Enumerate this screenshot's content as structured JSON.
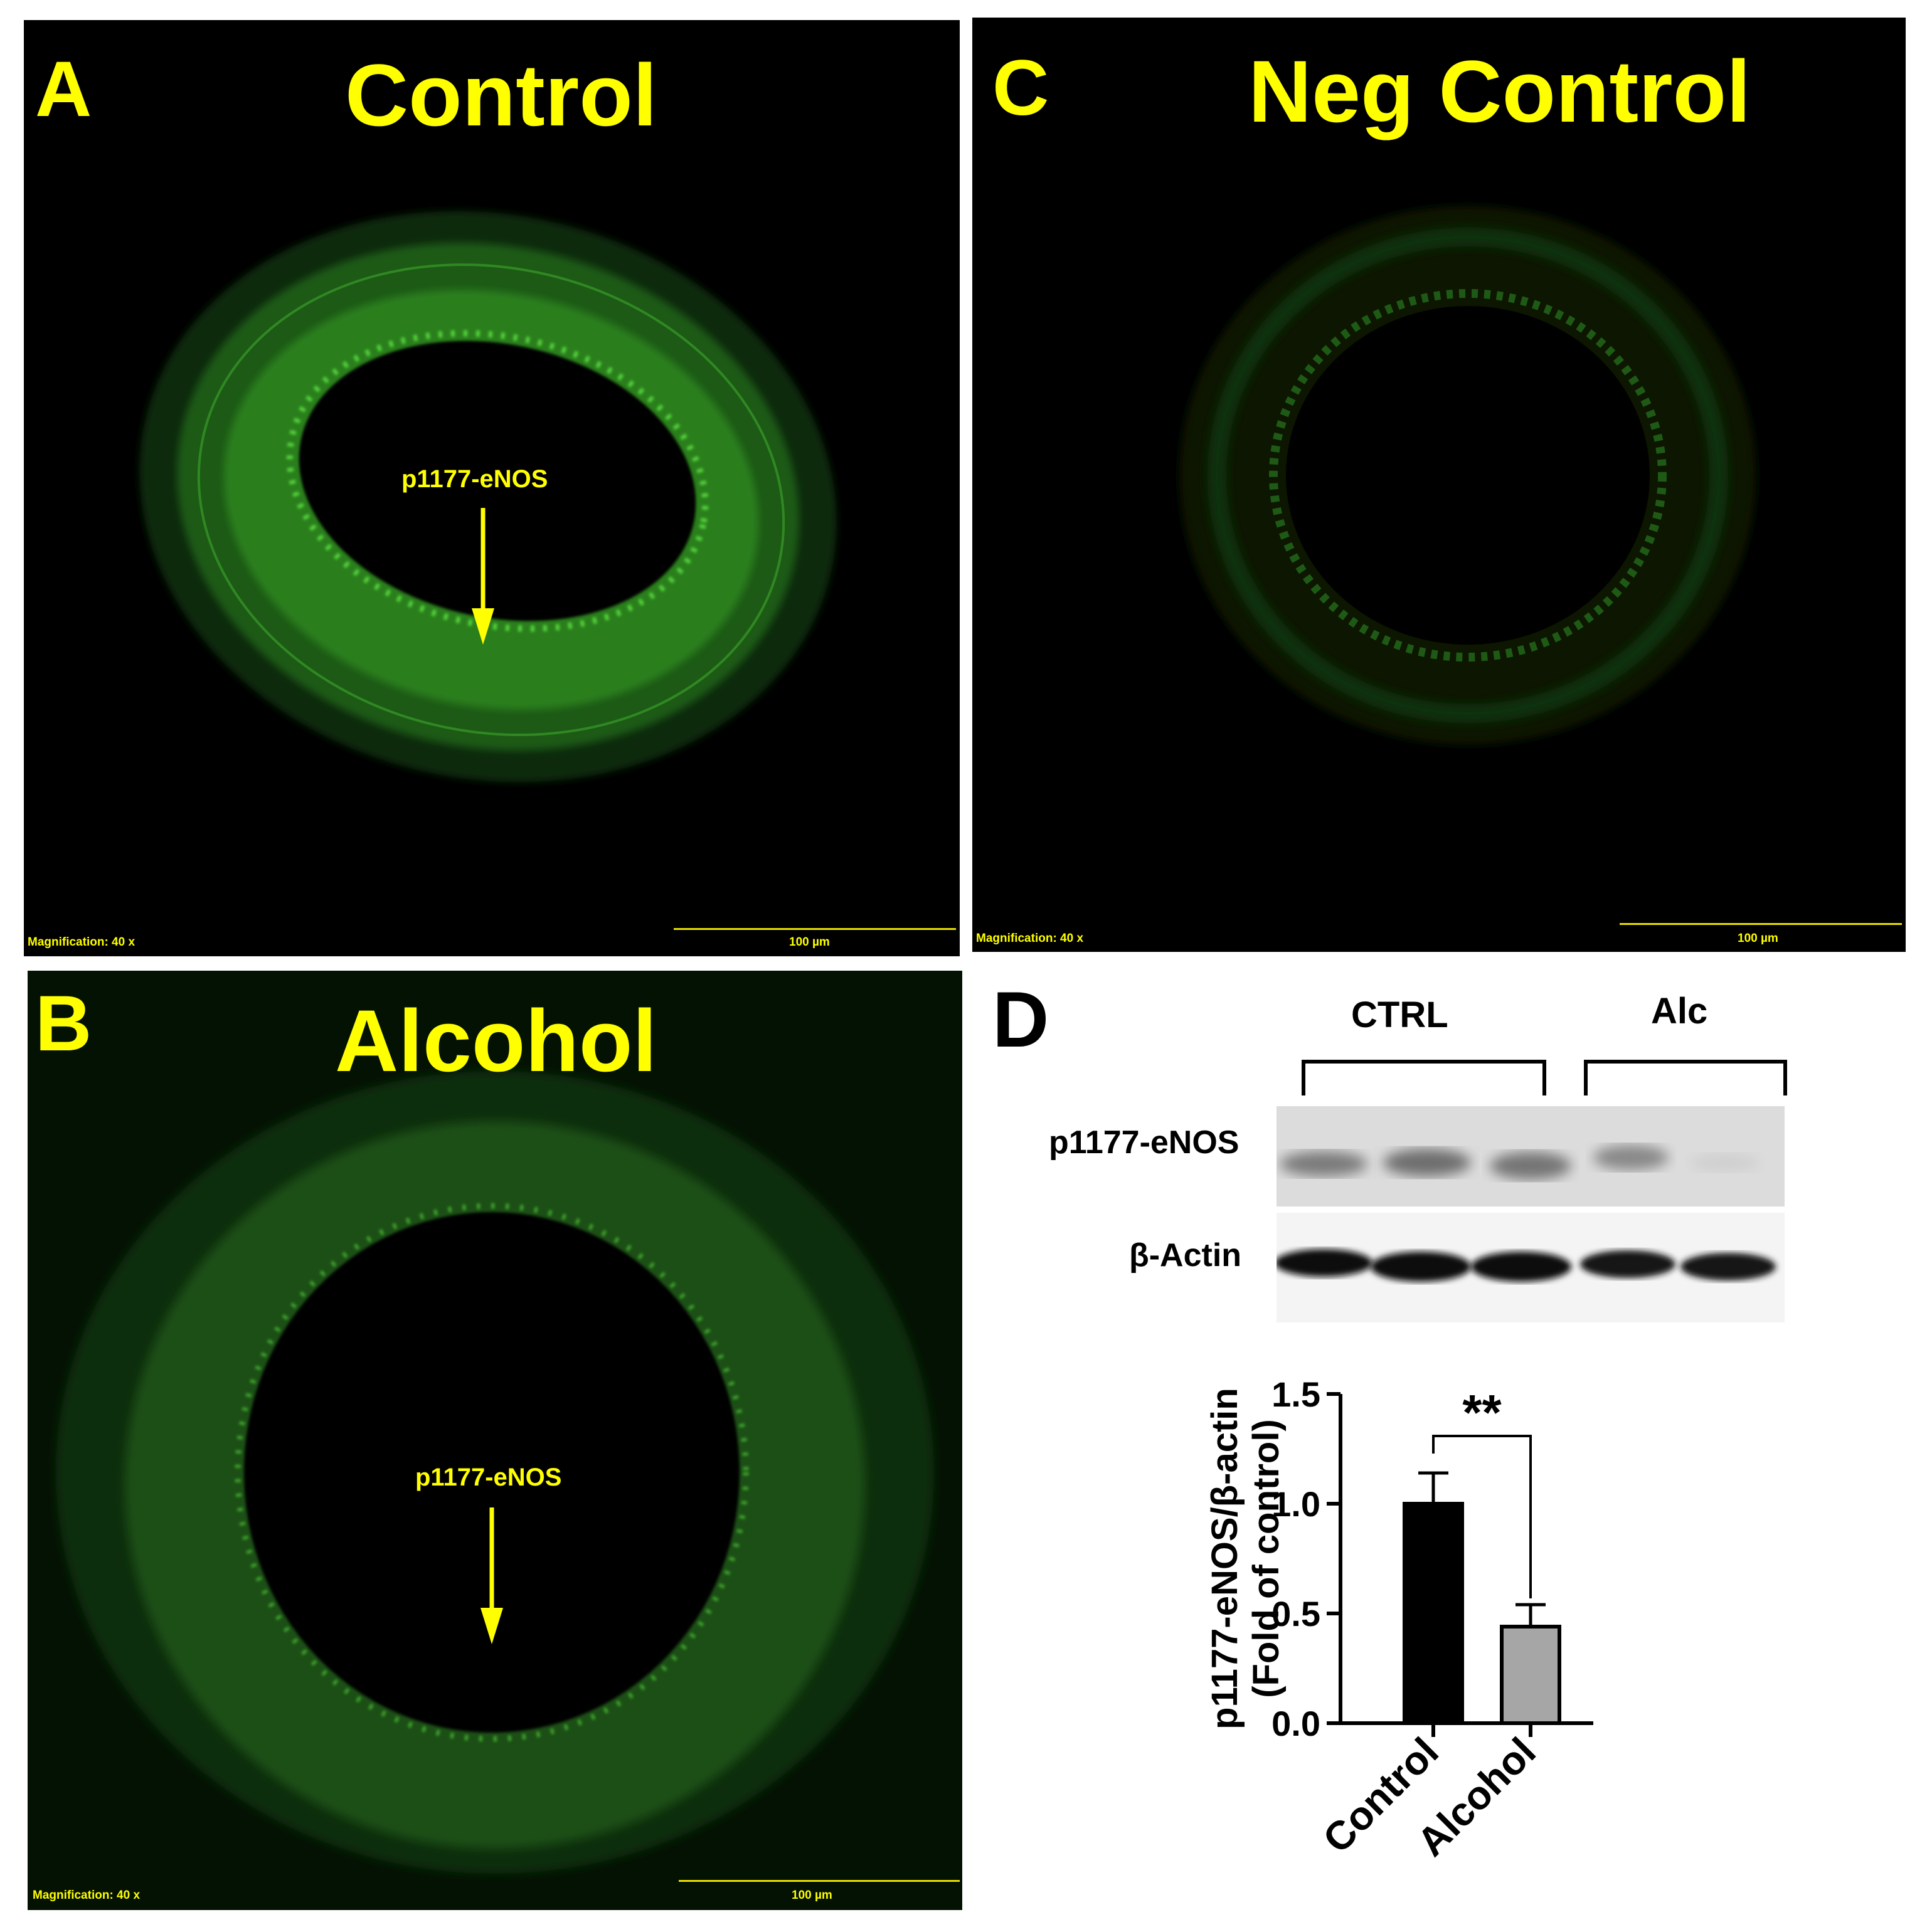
{
  "panels": {
    "A": {
      "letter": "A",
      "title": "Control",
      "magnification": "Magnification:  40 x",
      "scale": "100 µm",
      "arrow_label": "p1177-eNOS"
    },
    "B": {
      "letter": "B",
      "title": "Alcohol",
      "magnification": "Magnification:  40 x",
      "scale": "100 µm",
      "arrow_label": "p1177-eNOS"
    },
    "C": {
      "letter": "C",
      "title": "Neg Control",
      "magnification": "Magnification:  40 x",
      "scale": "100 µm"
    },
    "D": {
      "letter": "D",
      "blot": {
        "group_ctrl": "CTRL",
        "group_alc": "Alc",
        "row1": "p1177-eNOS",
        "row2": "β-Actin"
      }
    }
  },
  "colors": {
    "fluorescence": "#2f9a22",
    "label": "#ffff00",
    "control_bar": "#000000",
    "alcohol_bar": "#a6a6a6"
  },
  "chart_data": {
    "type": "bar",
    "categories": [
      "Control",
      "Alcohol"
    ],
    "values": [
      1.0,
      0.44
    ],
    "errors": [
      0.14,
      0.1
    ],
    "colors": [
      "#000000",
      "#a6a6a6"
    ],
    "ylabel_line1": "p1177-eNOS/β-actin",
    "ylabel_line2": "(Fold of control)",
    "ylim": [
      0,
      1.5
    ],
    "yticks": [
      "0.0",
      "0.5",
      "1.0",
      "1.5"
    ],
    "significance": "**"
  }
}
